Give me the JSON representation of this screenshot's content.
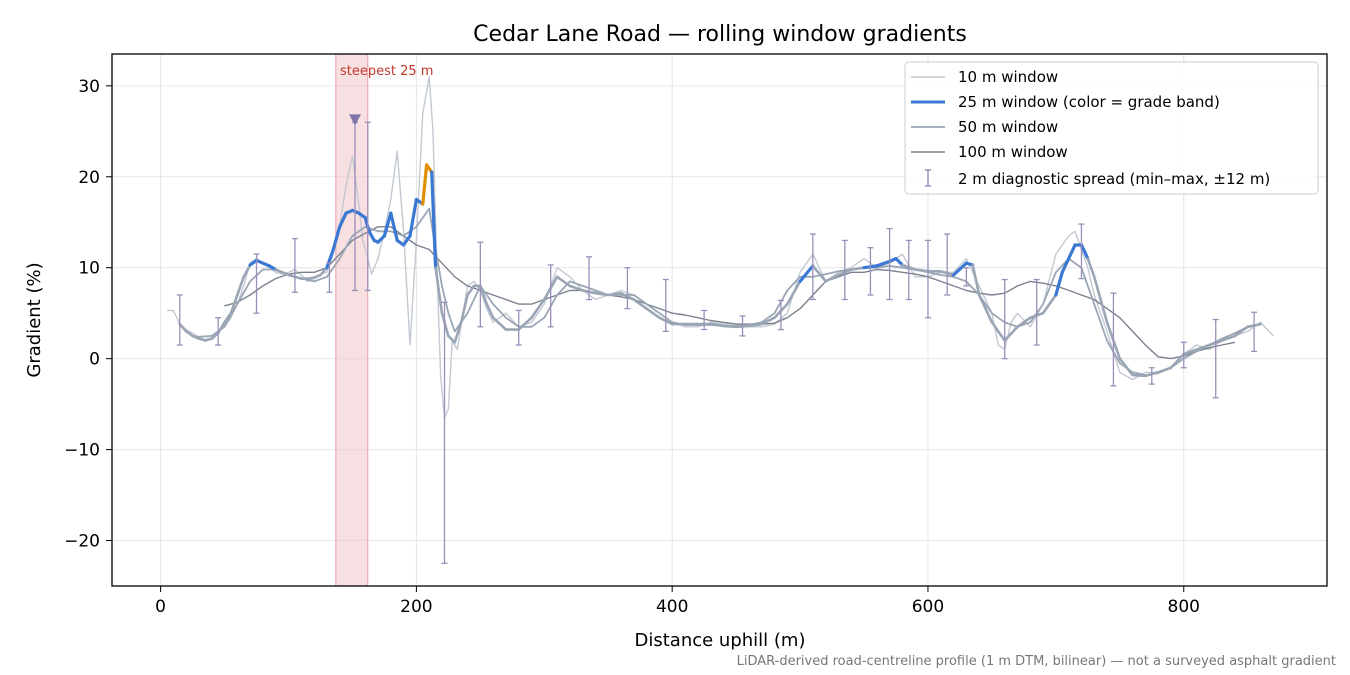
{
  "chart_data": {
    "type": "line",
    "title": "Cedar Lane Road — rolling window gradients",
    "xlabel": "Distance uphill (m)",
    "ylabel": "Gradient (%)",
    "xlim": [
      -38,
      912
    ],
    "ylim": [
      -25,
      33.5
    ],
    "xticks": [
      0,
      200,
      400,
      600,
      800
    ],
    "yticks": [
      -20,
      -10,
      0,
      10,
      20,
      30
    ],
    "xtick_labels": [
      "0",
      "200",
      "400",
      "600",
      "800"
    ],
    "ytick_labels": [
      "−20",
      "−10",
      "0",
      "10",
      "20",
      "30"
    ],
    "grid": true,
    "legend_position": "top-right",
    "colors": {
      "w10": "#c3c9d2",
      "w25": "#3a78d4",
      "w25_alt_grey": "#9aa6b5",
      "w25_orange": "#e08f00",
      "w50": "#9aa6b5",
      "w100": "#7a818e",
      "spread": "#9a8fb8",
      "highlight": "#f2c4c8",
      "marker": "#7e74a8"
    },
    "highlight_band": {
      "x0": 137,
      "x1": 162,
      "label": "steepest 25 m"
    },
    "marker": {
      "x": 152,
      "y": 26.2
    },
    "series": [
      {
        "name": "10 m window",
        "key": "w10",
        "x": [
          5,
          10,
          15,
          20,
          25,
          30,
          35,
          40,
          45,
          50,
          55,
          60,
          65,
          70,
          75,
          80,
          85,
          90,
          95,
          100,
          105,
          110,
          115,
          120,
          125,
          130,
          135,
          140,
          145,
          150,
          155,
          158,
          162,
          165,
          170,
          175,
          180,
          185,
          190,
          195,
          200,
          205,
          210,
          213,
          216,
          219,
          222,
          225,
          228,
          232,
          236,
          240,
          245,
          250,
          255,
          260,
          265,
          270,
          280,
          290,
          300,
          310,
          320,
          330,
          340,
          350,
          360,
          370,
          380,
          390,
          400,
          410,
          420,
          430,
          440,
          450,
          460,
          470,
          480,
          490,
          500,
          510,
          520,
          530,
          540,
          550,
          560,
          570,
          580,
          590,
          600,
          610,
          620,
          630,
          640,
          650,
          655,
          660,
          665,
          670,
          680,
          690,
          700,
          710,
          715,
          720,
          725,
          730,
          740,
          750,
          760,
          770,
          780,
          790,
          800,
          810,
          820,
          830,
          840,
          850,
          860,
          870
        ],
        "y": [
          5.3,
          5.3,
          3.8,
          3.2,
          2.8,
          2.3,
          2.1,
          2.3,
          3.0,
          3.5,
          4.5,
          6.0,
          8.0,
          10.5,
          11.0,
          10.5,
          10.0,
          9.5,
          9.3,
          9.5,
          9.8,
          9.2,
          8.5,
          8.8,
          9.3,
          9.5,
          11.5,
          14.5,
          19.0,
          22.3,
          17.0,
          13.0,
          11.0,
          9.3,
          11.0,
          14.0,
          17.5,
          22.8,
          14.0,
          1.5,
          13.0,
          27.0,
          31.0,
          25.0,
          10.0,
          -2.0,
          -6.5,
          -5.5,
          2.0,
          1.0,
          4.5,
          8.0,
          8.5,
          7.5,
          5.5,
          4.0,
          4.5,
          5.0,
          3.5,
          4.0,
          6.0,
          10.0,
          9.0,
          7.5,
          6.5,
          7.0,
          7.5,
          7.0,
          6.0,
          5.0,
          4.0,
          3.5,
          3.5,
          4.0,
          3.8,
          3.8,
          3.5,
          3.5,
          3.8,
          5.0,
          9.5,
          11.5,
          8.5,
          9.5,
          10.0,
          11.0,
          10.0,
          10.5,
          11.5,
          9.0,
          9.0,
          9.5,
          9.5,
          11.0,
          8.0,
          5.0,
          1.5,
          1.0,
          4.0,
          5.0,
          3.5,
          6.0,
          11.5,
          13.5,
          14.0,
          12.0,
          10.0,
          7.0,
          3.0,
          -1.5,
          -2.3,
          -1.5,
          -1.5,
          -1.0,
          0.5,
          1.5,
          1.0,
          2.0,
          2.5,
          3.0,
          4.0,
          2.5
        ]
      },
      {
        "name": "25 m window (color = grade band)",
        "key": "w25",
        "x": [
          15,
          20,
          25,
          30,
          35,
          40,
          45,
          50,
          55,
          60,
          65,
          70,
          75,
          80,
          85,
          90,
          95,
          100,
          105,
          110,
          115,
          120,
          125,
          130,
          135,
          140,
          145,
          150,
          155,
          160,
          163,
          167,
          170,
          175,
          180,
          185,
          190,
          195,
          200,
          205,
          208,
          212,
          215,
          220,
          225,
          230,
          235,
          240,
          245,
          250,
          255,
          260,
          270,
          280,
          290,
          300,
          310,
          320,
          330,
          340,
          350,
          360,
          370,
          380,
          390,
          400,
          410,
          420,
          430,
          440,
          450,
          460,
          470,
          480,
          490,
          500,
          510,
          520,
          530,
          540,
          550,
          560,
          570,
          575,
          580,
          590,
          600,
          610,
          620,
          630,
          635,
          640,
          650,
          660,
          670,
          680,
          690,
          700,
          705,
          710,
          715,
          720,
          725,
          730,
          740,
          750,
          760,
          770,
          780,
          790,
          800,
          810,
          820,
          830,
          840,
          850,
          860
        ],
        "y": [
          3.8,
          3.0,
          2.5,
          2.2,
          2.0,
          2.2,
          2.8,
          4.0,
          5.0,
          7.0,
          9.0,
          10.3,
          10.8,
          10.5,
          10.2,
          9.8,
          9.5,
          9.2,
          9.0,
          8.8,
          8.8,
          8.9,
          9.2,
          10.0,
          12.0,
          14.5,
          16.0,
          16.3,
          16.0,
          15.5,
          14.0,
          13.0,
          12.8,
          13.5,
          16.0,
          13.0,
          12.5,
          13.5,
          17.5,
          17.0,
          21.3,
          20.5,
          10.0,
          5.0,
          2.5,
          1.8,
          4.0,
          7.0,
          8.0,
          8.0,
          6.0,
          4.5,
          3.2,
          3.2,
          4.5,
          6.5,
          9.0,
          8.0,
          7.5,
          7.2,
          7.0,
          7.2,
          6.5,
          5.5,
          4.5,
          3.8,
          3.8,
          3.8,
          3.8,
          3.6,
          3.5,
          3.6,
          3.8,
          4.5,
          6.0,
          8.5,
          10.2,
          8.5,
          9.2,
          9.8,
          10.0,
          10.2,
          10.7,
          11.0,
          10.3,
          9.8,
          9.6,
          9.6,
          9.2,
          10.5,
          10.3,
          7.0,
          4.0,
          2.0,
          3.5,
          4.5,
          5.0,
          7.0,
          9.5,
          11.0,
          12.5,
          12.5,
          11.0,
          9.0,
          4.0,
          0.0,
          -1.8,
          -1.9,
          -1.5,
          -1.0,
          0.5,
          1.0,
          1.5,
          2.0,
          2.5,
          3.5,
          3.8
        ],
        "band": [
          "grey",
          "grey",
          "grey",
          "grey",
          "grey",
          "grey",
          "grey",
          "grey",
          "grey",
          "grey",
          "grey",
          "grey",
          "blue",
          "blue",
          "blue",
          "blue",
          "grey",
          "grey",
          "grey",
          "grey",
          "grey",
          "grey",
          "grey",
          "grey",
          "blue",
          "blue",
          "blue",
          "blue",
          "blue",
          "blue",
          "blue",
          "blue",
          "blue",
          "blue",
          "blue",
          "blue",
          "blue",
          "blue",
          "blue",
          "blue",
          "orange",
          "orange",
          "blue",
          "grey",
          "grey",
          "grey",
          "grey",
          "grey",
          "grey",
          "grey",
          "grey",
          "grey",
          "grey",
          "grey",
          "grey",
          "grey",
          "grey",
          "grey",
          "grey",
          "grey",
          "grey",
          "grey",
          "grey",
          "grey",
          "grey",
          "grey",
          "grey",
          "grey",
          "grey",
          "grey",
          "grey",
          "grey",
          "grey",
          "grey",
          "grey",
          "grey",
          "blue",
          "grey",
          "grey",
          "grey",
          "grey",
          "blue",
          "blue",
          "blue",
          "blue",
          "grey",
          "grey",
          "grey",
          "grey",
          "blue",
          "blue",
          "grey",
          "grey",
          "grey",
          "grey",
          "grey",
          "grey",
          "grey",
          "blue",
          "blue",
          "blue",
          "blue",
          "blue",
          "grey",
          "grey",
          "grey",
          "grey",
          "grey",
          "grey",
          "grey",
          "grey",
          "grey",
          "grey",
          "grey",
          "grey",
          "grey",
          "grey"
        ]
      },
      {
        "name": "50 m window",
        "key": "w50",
        "x": [
          25,
          30,
          40,
          50,
          60,
          70,
          80,
          90,
          100,
          110,
          120,
          130,
          140,
          150,
          160,
          170,
          180,
          190,
          200,
          210,
          215,
          220,
          225,
          230,
          240,
          250,
          260,
          270,
          280,
          290,
          300,
          310,
          320,
          330,
          340,
          350,
          360,
          370,
          380,
          390,
          400,
          410,
          420,
          430,
          440,
          450,
          460,
          470,
          480,
          490,
          500,
          510,
          520,
          530,
          540,
          550,
          560,
          570,
          580,
          590,
          600,
          610,
          620,
          630,
          640,
          650,
          660,
          670,
          680,
          690,
          700,
          710,
          720,
          730,
          740,
          750,
          760,
          770,
          780,
          790,
          800,
          810,
          820,
          830,
          840,
          850
        ],
        "y": [
          2.5,
          2.4,
          2.5,
          3.5,
          6.0,
          8.5,
          9.8,
          9.8,
          9.2,
          8.8,
          8.5,
          9.0,
          11.0,
          13.5,
          14.5,
          14.0,
          14.0,
          13.5,
          14.5,
          16.5,
          12.0,
          8.0,
          5.0,
          3.0,
          5.0,
          8.0,
          6.0,
          4.5,
          3.5,
          3.5,
          4.5,
          7.0,
          8.5,
          8.0,
          7.5,
          7.0,
          7.0,
          7.0,
          6.0,
          5.0,
          4.0,
          3.7,
          3.7,
          3.7,
          3.6,
          3.6,
          3.7,
          4.0,
          5.0,
          7.5,
          9.0,
          9.0,
          9.3,
          9.6,
          9.8,
          10.0,
          10.0,
          10.2,
          10.0,
          9.8,
          9.5,
          9.2,
          9.0,
          8.5,
          7.0,
          5.0,
          4.0,
          3.5,
          4.0,
          6.0,
          9.5,
          11.0,
          10.0,
          6.0,
          2.0,
          -0.5,
          -1.5,
          -1.8,
          -1.6,
          -1.0,
          0.0,
          0.8,
          1.5,
          2.2,
          2.8,
          3.5
        ]
      },
      {
        "name": "100 m window",
        "key": "w100",
        "x": [
          50,
          60,
          70,
          80,
          90,
          100,
          110,
          120,
          130,
          140,
          150,
          160,
          170,
          180,
          190,
          200,
          210,
          220,
          230,
          240,
          250,
          260,
          270,
          280,
          290,
          300,
          310,
          320,
          330,
          340,
          350,
          360,
          370,
          380,
          390,
          400,
          410,
          420,
          430,
          440,
          450,
          460,
          470,
          480,
          490,
          500,
          510,
          520,
          530,
          540,
          550,
          560,
          570,
          580,
          590,
          600,
          610,
          620,
          630,
          640,
          650,
          660,
          670,
          680,
          690,
          700,
          710,
          720,
          730,
          740,
          750,
          760,
          770,
          780,
          790,
          800,
          810,
          820,
          830,
          840
        ],
        "y": [
          5.8,
          6.2,
          7.0,
          8.0,
          8.8,
          9.3,
          9.5,
          9.5,
          10.0,
          11.5,
          13.0,
          13.8,
          14.5,
          14.5,
          13.5,
          12.5,
          12.0,
          10.5,
          9.0,
          8.0,
          7.5,
          7.0,
          6.5,
          6.0,
          6.0,
          6.5,
          7.0,
          7.5,
          7.5,
          7.3,
          7.0,
          6.8,
          6.5,
          6.0,
          5.5,
          5.0,
          4.8,
          4.5,
          4.2,
          4.0,
          3.8,
          3.8,
          3.8,
          3.9,
          4.5,
          5.5,
          7.0,
          8.5,
          9.0,
          9.5,
          9.5,
          9.8,
          9.7,
          9.5,
          9.3,
          9.0,
          8.5,
          8.0,
          7.5,
          7.2,
          7.0,
          7.2,
          8.0,
          8.5,
          8.3,
          8.0,
          7.5,
          7.0,
          6.5,
          5.5,
          4.5,
          3.0,
          1.5,
          0.2,
          0.0,
          0.3,
          0.8,
          1.2,
          1.5,
          1.8
        ]
      }
    ],
    "spread": {
      "name": "2 m diagnostic spread (min–max, ±12 m)",
      "x": [
        15,
        45,
        75,
        105,
        132,
        152,
        162,
        222,
        250,
        280,
        305,
        335,
        365,
        395,
        425,
        455,
        485,
        510,
        535,
        555,
        570,
        585,
        600,
        615,
        630,
        660,
        685,
        720,
        745,
        775,
        800,
        825,
        855
      ],
      "mid": [
        3.8,
        2.8,
        10.5,
        9.5,
        9.0,
        16.0,
        16.0,
        6.5,
        8.0,
        3.2,
        8.0,
        8.0,
        7.5,
        5.5,
        3.8,
        3.5,
        4.0,
        10.0,
        9.0,
        10.0,
        10.5,
        10.0,
        9.5,
        9.0,
        10.5,
        4.0,
        5.0,
        12.5,
        2.0,
        -1.9,
        0.5,
        1.8,
        3.7
      ],
      "ymin": [
        1.5,
        1.5,
        5.0,
        7.3,
        7.3,
        7.5,
        7.5,
        -22.5,
        3.5,
        1.5,
        3.5,
        6.5,
        5.5,
        3.0,
        3.2,
        2.5,
        3.2,
        6.5,
        6.5,
        7.0,
        6.5,
        6.5,
        4.5,
        7.0,
        8.0,
        0.0,
        1.5,
        8.8,
        -3.0,
        -2.8,
        -1.0,
        -4.3,
        0.8
      ],
      "ymax": [
        7.0,
        4.5,
        11.5,
        13.2,
        10.5,
        26.0,
        26.0,
        6.2,
        12.8,
        5.3,
        10.3,
        11.2,
        10.0,
        8.7,
        5.3,
        4.7,
        6.4,
        13.7,
        13.0,
        12.2,
        14.3,
        13.0,
        13.0,
        13.7,
        10.0,
        8.7,
        8.7,
        14.8,
        7.2,
        -1.0,
        1.8,
        4.3,
        5.1
      ]
    },
    "footnote": "LiDAR-derived road-centreline profile (1 m DTM, bilinear) — not a surveyed asphalt gradient"
  }
}
